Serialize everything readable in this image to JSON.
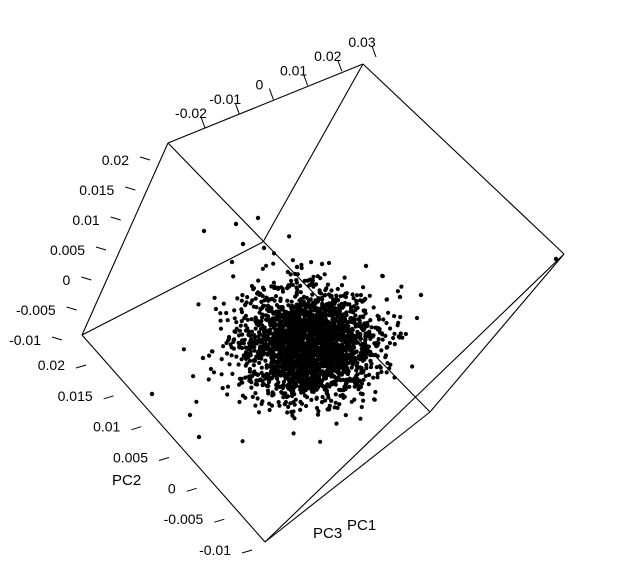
{
  "chart_data": {
    "type": "scatter",
    "projection": "3d",
    "title": "",
    "axes": {
      "top": {
        "ticks": [
          "-0.02",
          "-0.01",
          "0",
          "0.01",
          "0.02",
          "0.03"
        ],
        "label": ""
      },
      "left": {
        "ticks": [
          "0.02",
          "0.015",
          "0.01",
          "0.005",
          "0",
          "-0.005",
          "-0.01"
        ],
        "label": ""
      },
      "lower": {
        "ticks": [
          "0.02",
          "0.015",
          "0.01",
          "0.005",
          "0",
          "-0.005",
          "-0.01"
        ],
        "label": "PC2"
      },
      "pc1_label": "PC1",
      "pc3_label": "PC3"
    },
    "cluster": {
      "description_count": 2600,
      "center_pc": [
        0.0,
        0.0,
        0.0
      ]
    },
    "outliers": [
      {
        "id": "o1"
      },
      {
        "id": "o2"
      },
      {
        "id": "o3"
      },
      {
        "id": "o4"
      },
      {
        "id": "o5"
      },
      {
        "id": "o6"
      },
      {
        "id": "o7"
      },
      {
        "id": "o8"
      },
      {
        "id": "o9"
      },
      {
        "id": "o10"
      },
      {
        "id": "o11"
      },
      {
        "id": "o12"
      },
      {
        "id": "o13"
      },
      {
        "id": "o14"
      },
      {
        "id": "o15"
      },
      {
        "id": "o16"
      }
    ],
    "point_color": "#000000",
    "grid": false,
    "legend": "none"
  }
}
